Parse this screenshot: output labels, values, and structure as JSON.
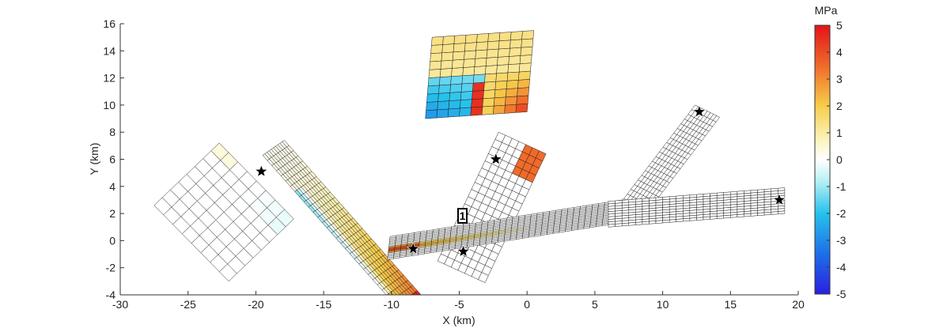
{
  "chart_data": {
    "type": "heatmap",
    "xlabel": "X (km)",
    "ylabel": "Y (km)",
    "xlim": [
      -30,
      20
    ],
    "ylim": [
      -4,
      16
    ],
    "xticks": [
      "-30",
      "-25",
      "-20",
      "-15",
      "-10",
      "-5",
      "0",
      "5",
      "10",
      "15",
      "20"
    ],
    "yticks": [
      "-4",
      "-2",
      "0",
      "2",
      "4",
      "6",
      "8",
      "10",
      "12",
      "14",
      "16"
    ],
    "colorbar": {
      "title": "MPa",
      "range": [
        -5,
        5
      ],
      "ticks": [
        "-5",
        "-4",
        "-3",
        "-2",
        "-1",
        "0",
        "1",
        "2",
        "3",
        "4",
        "5"
      ]
    },
    "label_1": "1",
    "stars": [
      {
        "x": -19.6,
        "y": 5.1
      },
      {
        "x": -8.4,
        "y": -0.6
      },
      {
        "x": -4.7,
        "y": -0.8
      },
      {
        "x": -2.3,
        "y": 6.0
      },
      {
        "x": 12.7,
        "y": 9.5
      },
      {
        "x": 18.6,
        "y": 3.0
      }
    ],
    "fault_patches": [
      {
        "name": "west-block",
        "origin": [
          -27.5,
          2.6
        ],
        "u": [
          5.5,
          -5.6
        ],
        "v": [
          4.8,
          4.6
        ],
        "nu": 8,
        "nv": 8,
        "field": "west"
      },
      {
        "name": "diagonal-long",
        "origin": [
          -19.5,
          6.3
        ],
        "u": [
          11.5,
          -13.0
        ],
        "v": [
          1.6,
          1.1
        ],
        "nu": 34,
        "nv": 10,
        "field": "diag"
      },
      {
        "name": "upper-block",
        "origin": [
          -7.5,
          9.0
        ],
        "u": [
          7.5,
          0.5
        ],
        "v": [
          0.5,
          6.0
        ],
        "nu": 9,
        "nv": 10,
        "field": "upper"
      },
      {
        "name": "central-plane",
        "origin": [
          -6.6,
          -1.5
        ],
        "u": [
          4.5,
          9.5
        ],
        "v": [
          3.5,
          -1.6
        ],
        "nu": 18,
        "nv": 7,
        "field": "central"
      },
      {
        "name": "east-arm",
        "origin": [
          -10.3,
          -1.4
        ],
        "u": [
          19.0,
          3.0
        ],
        "v": [
          0.2,
          1.7
        ],
        "nu": 42,
        "nv": 14,
        "field": "eastarm"
      },
      {
        "name": "northeast-ridge",
        "origin": [
          12.4,
          10.0
        ],
        "u": [
          -5.8,
          -7.6
        ],
        "v": [
          1.8,
          -0.9
        ],
        "nu": 22,
        "nv": 8,
        "field": "plain"
      },
      {
        "name": "far-east-plate",
        "origin": [
          6.0,
          1.0
        ],
        "u": [
          13.0,
          1.0
        ],
        "v": [
          0.0,
          1.9
        ],
        "nu": 26,
        "nv": 10,
        "field": "plain"
      }
    ]
  }
}
